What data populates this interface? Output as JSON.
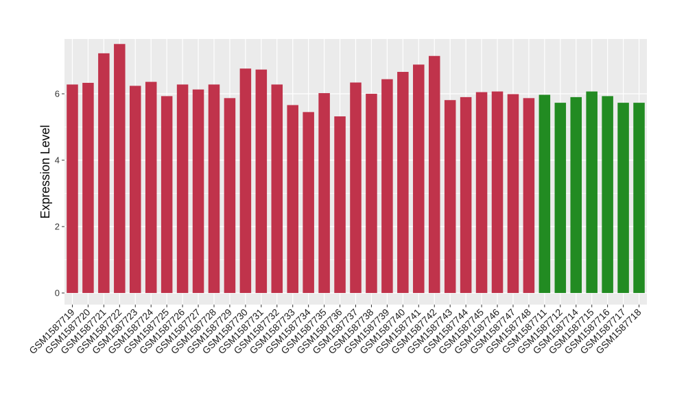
{
  "chart_data": {
    "type": "bar",
    "title": "",
    "xlabel": "",
    "ylabel": "Expression Level",
    "ylim": [
      -0.35,
      7.65
    ],
    "yticks": [
      0,
      2,
      4,
      6
    ],
    "grid": true,
    "background": "#ebebeb",
    "gridline_color": "#ffffff",
    "colors": {
      "red": "#c0334b",
      "green": "#228b22"
    },
    "categories": [
      "GSM1587719",
      "GSM1587720",
      "GSM1587721",
      "GSM1587722",
      "GSM1587723",
      "GSM1587724",
      "GSM1587725",
      "GSM1587726",
      "GSM1587727",
      "GSM1587728",
      "GSM1587729",
      "GSM1587730",
      "GSM1587731",
      "GSM1587732",
      "GSM1587733",
      "GSM1587734",
      "GSM1587735",
      "GSM1587736",
      "GSM1587737",
      "GSM1587738",
      "GSM1587739",
      "GSM1587740",
      "GSM1587741",
      "GSM1587742",
      "GSM1587743",
      "GSM1587744",
      "GSM1587745",
      "GSM1587746",
      "GSM1587747",
      "GSM1587748",
      "GSM1587711",
      "GSM1587712",
      "GSM1587714",
      "GSM1587715",
      "GSM1587716",
      "GSM1587717",
      "GSM1587718"
    ],
    "values": [
      6.28,
      6.33,
      7.22,
      7.5,
      6.24,
      6.36,
      5.93,
      6.28,
      6.13,
      6.28,
      5.87,
      6.76,
      6.73,
      6.28,
      5.66,
      5.45,
      6.02,
      5.32,
      6.34,
      6.0,
      6.44,
      6.66,
      6.88,
      7.14,
      5.81,
      5.9,
      6.05,
      6.07,
      5.99,
      5.87,
      5.97,
      5.73,
      5.9,
      6.07,
      5.93,
      5.73,
      5.73
    ],
    "bar_colors": [
      "red",
      "red",
      "red",
      "red",
      "red",
      "red",
      "red",
      "red",
      "red",
      "red",
      "red",
      "red",
      "red",
      "red",
      "red",
      "red",
      "red",
      "red",
      "red",
      "red",
      "red",
      "red",
      "red",
      "red",
      "red",
      "red",
      "red",
      "red",
      "red",
      "red",
      "green",
      "green",
      "green",
      "green",
      "green",
      "green",
      "green"
    ]
  }
}
